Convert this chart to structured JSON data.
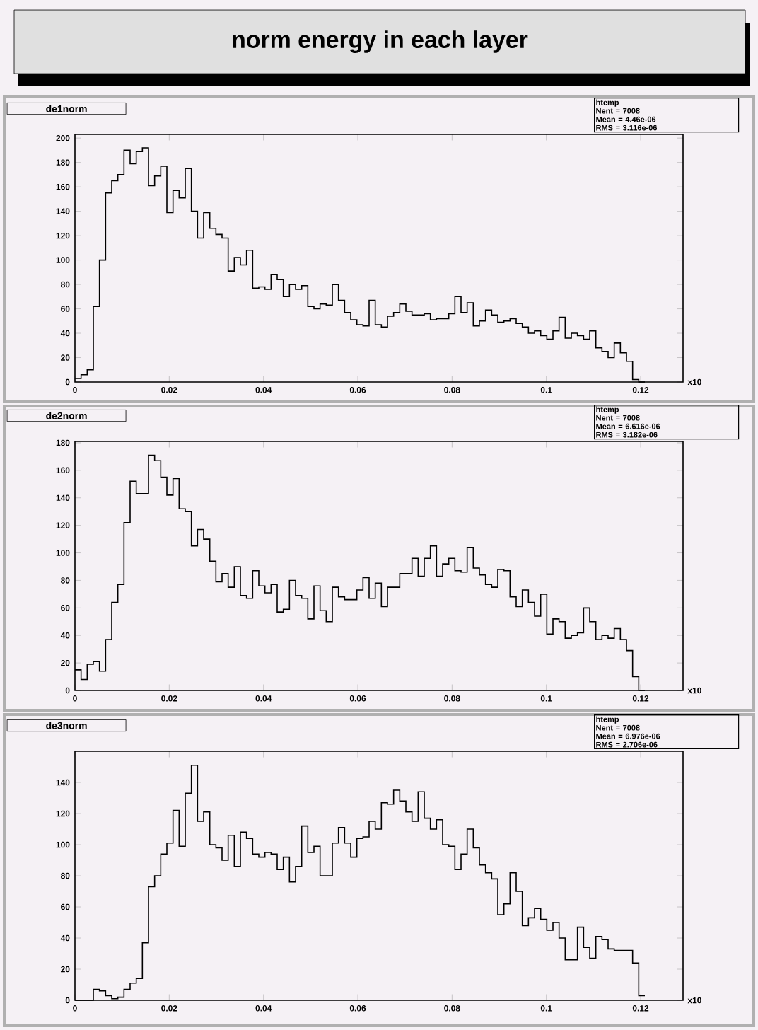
{
  "chart_data": [
    {
      "type": "other",
      "title": "norm energy in each layer"
    },
    {
      "type": "histogram",
      "title": "de1norm",
      "color": "#000000",
      "bins": [
        0,
        0.0013,
        0.0026,
        0.0039,
        0.0052,
        0.0065,
        0.0078,
        0.0091,
        0.0104,
        0.0117,
        0.013,
        0.0143,
        0.0156,
        0.0169,
        0.0182,
        0.0195,
        0.0208,
        0.0221,
        0.0234,
        0.0247,
        0.026,
        0.0273,
        0.0286,
        0.0299,
        0.0312,
        0.0325,
        0.0338,
        0.0351,
        0.0364,
        0.0377,
        0.039,
        0.0403,
        0.0416,
        0.0429,
        0.0442,
        0.0455,
        0.0468,
        0.0481,
        0.0494,
        0.0507,
        0.052,
        0.0533,
        0.0546,
        0.0559,
        0.0572,
        0.0585,
        0.0598,
        0.0611,
        0.0624,
        0.0637,
        0.065,
        0.0663,
        0.0676,
        0.0689,
        0.0702,
        0.0715,
        0.0728,
        0.0741,
        0.0754,
        0.0767,
        0.078,
        0.0793,
        0.0806,
        0.0819,
        0.0832,
        0.0845,
        0.0858,
        0.0871,
        0.0884,
        0.0897,
        0.091,
        0.0923,
        0.0936,
        0.0949,
        0.0962,
        0.0975,
        0.0988,
        0.1001,
        0.1014,
        0.1027,
        0.104,
        0.1053,
        0.1066,
        0.1079,
        0.1092,
        0.1105,
        0.1118,
        0.1131,
        0.1144,
        0.1157,
        0.117,
        0.1183,
        0.1196,
        0.1209
      ],
      "values": [
        3,
        6,
        10,
        62,
        100,
        155,
        165,
        170,
        190,
        179,
        189,
        192,
        161,
        169,
        177,
        139,
        157,
        151,
        175,
        140,
        118,
        139,
        126,
        121,
        118,
        91,
        102,
        96,
        108,
        77,
        78,
        76,
        88,
        84,
        70,
        80,
        76,
        79,
        62,
        60,
        64,
        63,
        80,
        67,
        57,
        51,
        47,
        46,
        67,
        47,
        45,
        54,
        57,
        64,
        58,
        55,
        55,
        56,
        51,
        52,
        52,
        56,
        70,
        57,
        65,
        46,
        50,
        59,
        55,
        49,
        50,
        52,
        48,
        45,
        40,
        42,
        38,
        35,
        42,
        53,
        36,
        40,
        38,
        35,
        42,
        28,
        25,
        20,
        32,
        24,
        17,
        2,
        0
      ],
      "xlim": [
        0,
        0.129
      ],
      "ylim": [
        0,
        203
      ],
      "xticks": [
        0,
        0.02,
        0.04,
        0.06,
        0.08,
        0.1,
        0.12
      ],
      "yticks": [
        0,
        20,
        40,
        60,
        80,
        100,
        120,
        140,
        160,
        180,
        200
      ],
      "annotations": [
        "htemp",
        "Nent = 7008",
        "Mean = 4.46e-06",
        "RMS = 3.116e-06",
        "x10"
      ]
    },
    {
      "type": "histogram",
      "title": "de2norm",
      "color": "#000000",
      "bins": [
        0,
        0.0013,
        0.0026,
        0.0039,
        0.0052,
        0.0065,
        0.0078,
        0.0091,
        0.0104,
        0.0117,
        0.013,
        0.0143,
        0.0156,
        0.0169,
        0.0182,
        0.0195,
        0.0208,
        0.0221,
        0.0234,
        0.0247,
        0.026,
        0.0273,
        0.0286,
        0.0299,
        0.0312,
        0.0325,
        0.0338,
        0.0351,
        0.0364,
        0.0377,
        0.039,
        0.0403,
        0.0416,
        0.0429,
        0.0442,
        0.0455,
        0.0468,
        0.0481,
        0.0494,
        0.0507,
        0.052,
        0.0533,
        0.0546,
        0.0559,
        0.0572,
        0.0585,
        0.0598,
        0.0611,
        0.0624,
        0.0637,
        0.065,
        0.0663,
        0.0676,
        0.0689,
        0.0702,
        0.0715,
        0.0728,
        0.0741,
        0.0754,
        0.0767,
        0.078,
        0.0793,
        0.0806,
        0.0819,
        0.0832,
        0.0845,
        0.0858,
        0.0871,
        0.0884,
        0.0897,
        0.091,
        0.0923,
        0.0936,
        0.0949,
        0.0962,
        0.0975,
        0.0988,
        0.1001,
        0.1014,
        0.1027,
        0.104,
        0.1053,
        0.1066,
        0.1079,
        0.1092,
        0.1105,
        0.1118,
        0.1131,
        0.1144,
        0.1157,
        0.117,
        0.1183,
        0.1196,
        0.1209
      ],
      "values": [
        15,
        8,
        19,
        21,
        14,
        37,
        64,
        77,
        122,
        152,
        143,
        143,
        171,
        167,
        155,
        142,
        154,
        132,
        130,
        105,
        117,
        110,
        94,
        79,
        85,
        75,
        90,
        69,
        67,
        87,
        76,
        71,
        77,
        57,
        59,
        80,
        69,
        67,
        52,
        76,
        58,
        50,
        75,
        68,
        66,
        66,
        73,
        82,
        67,
        78,
        61,
        75,
        75,
        85,
        85,
        96,
        83,
        96,
        105,
        83,
        92,
        96,
        87,
        86,
        104,
        89,
        84,
        77,
        75,
        88,
        87,
        68,
        61,
        73,
        64,
        54,
        70,
        41,
        52,
        50,
        38,
        40,
        42,
        60,
        50,
        37,
        40,
        38,
        45,
        37,
        29,
        10,
        0
      ],
      "xlim": [
        0,
        0.129
      ],
      "ylim": [
        0,
        181
      ],
      "xticks": [
        0,
        0.02,
        0.04,
        0.06,
        0.08,
        0.1,
        0.12
      ],
      "yticks": [
        0,
        20,
        40,
        60,
        80,
        100,
        120,
        140,
        160,
        180
      ],
      "annotations": [
        "htemp",
        "Nent = 7008",
        "Mean = 6.616e-06",
        "RMS = 3.182e-06",
        "x10"
      ]
    },
    {
      "type": "histogram",
      "title": "de3norm",
      "color": "#000000",
      "bins": [
        0,
        0.0013,
        0.0026,
        0.0039,
        0.0052,
        0.0065,
        0.0078,
        0.0091,
        0.0104,
        0.0117,
        0.013,
        0.0143,
        0.0156,
        0.0169,
        0.0182,
        0.0195,
        0.0208,
        0.0221,
        0.0234,
        0.0247,
        0.026,
        0.0273,
        0.0286,
        0.0299,
        0.0312,
        0.0325,
        0.0338,
        0.0351,
        0.0364,
        0.0377,
        0.039,
        0.0403,
        0.0416,
        0.0429,
        0.0442,
        0.0455,
        0.0468,
        0.0481,
        0.0494,
        0.0507,
        0.052,
        0.0533,
        0.0546,
        0.0559,
        0.0572,
        0.0585,
        0.0598,
        0.0611,
        0.0624,
        0.0637,
        0.065,
        0.0663,
        0.0676,
        0.0689,
        0.0702,
        0.0715,
        0.0728,
        0.0741,
        0.0754,
        0.0767,
        0.078,
        0.0793,
        0.0806,
        0.0819,
        0.0832,
        0.0845,
        0.0858,
        0.0871,
        0.0884,
        0.0897,
        0.091,
        0.0923,
        0.0936,
        0.0949,
        0.0962,
        0.0975,
        0.0988,
        0.1001,
        0.1014,
        0.1027,
        0.104,
        0.1053,
        0.1066,
        0.1079,
        0.1092,
        0.1105,
        0.1118,
        0.1131,
        0.1144,
        0.1157,
        0.117,
        0.1183,
        0.1196,
        0.1209
      ],
      "values": [
        0,
        0,
        0,
        7,
        6,
        3,
        1,
        2,
        7,
        11,
        14,
        37,
        73,
        80,
        94,
        101,
        122,
        99,
        133,
        151,
        115,
        121,
        100,
        98,
        90,
        106,
        86,
        108,
        104,
        94,
        92,
        95,
        94,
        84,
        92,
        76,
        86,
        112,
        95,
        99,
        80,
        80,
        101,
        111,
        101,
        92,
        104,
        105,
        115,
        110,
        127,
        126,
        135,
        128,
        121,
        115,
        134,
        117,
        110,
        116,
        100,
        99,
        84,
        94,
        110,
        98,
        87,
        82,
        78,
        55,
        62,
        82,
        70,
        48,
        53,
        59,
        52,
        45,
        50,
        40,
        26,
        26,
        47,
        34,
        27,
        41,
        39,
        33,
        32,
        32,
        32,
        24,
        3
      ],
      "xlim": [
        0,
        0.129
      ],
      "ylim": [
        0,
        160
      ],
      "xticks": [
        0,
        0.02,
        0.04,
        0.06,
        0.08,
        0.1,
        0.12
      ],
      "yticks": [
        0,
        20,
        40,
        60,
        80,
        100,
        120,
        140
      ],
      "annotations": [
        "htemp",
        "Nent = 7008",
        "Mean = 6.976e-06",
        "RMS = 2.706e-06",
        "x10"
      ]
    }
  ]
}
